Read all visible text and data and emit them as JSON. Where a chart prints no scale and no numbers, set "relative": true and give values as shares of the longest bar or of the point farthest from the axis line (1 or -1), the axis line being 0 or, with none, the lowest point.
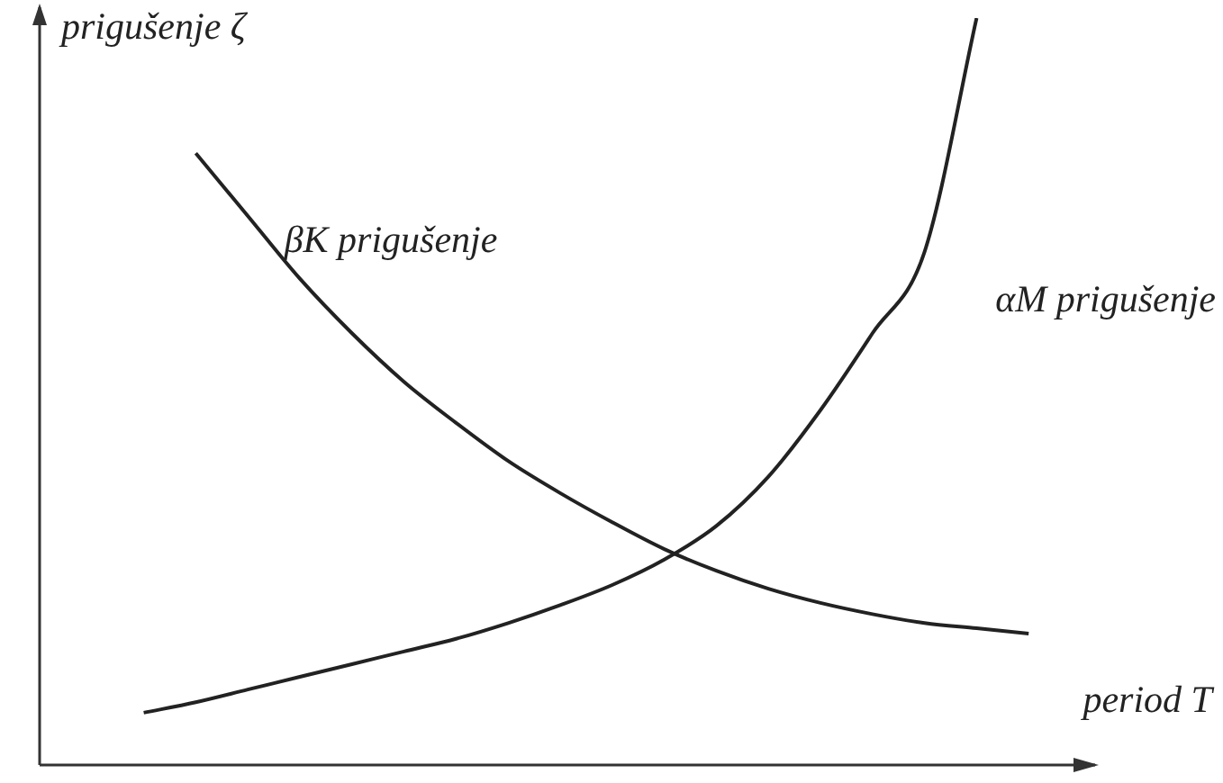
{
  "chart_data": {
    "type": "line",
    "relative": true,
    "ylabel": "prigušenje ζ",
    "xlabel": "period T",
    "categories": [
      null,
      null,
      null,
      null,
      null,
      null,
      null,
      null,
      null,
      null,
      null,
      null,
      null,
      null,
      null,
      null,
      null,
      null,
      null,
      null,
      null
    ],
    "legend": false,
    "marker": "none",
    "line_style": "solid",
    "series": [
      {
        "name": "βK prigušenje",
        "color": "#222222",
        "values": [
          null,
          null,
          null,
          0.819,
          0.735,
          0.651,
          0.578,
          0.513,
          0.458,
          0.407,
          0.364,
          0.325,
          0.289,
          0.26,
          0.236,
          0.217,
          0.202,
          0.19,
          0.183,
          0.176,
          null
        ]
      },
      {
        "name": "αM prigušenje",
        "color": "#222222",
        "values": [
          null,
          null,
          0.07,
          0.084,
          0.101,
          0.118,
          0.135,
          0.152,
          0.169,
          0.19,
          0.214,
          0.241,
          0.275,
          0.32,
          0.386,
          0.475,
          0.578,
          0.687,
          1,
          null,
          null
        ]
      }
    ]
  }
}
